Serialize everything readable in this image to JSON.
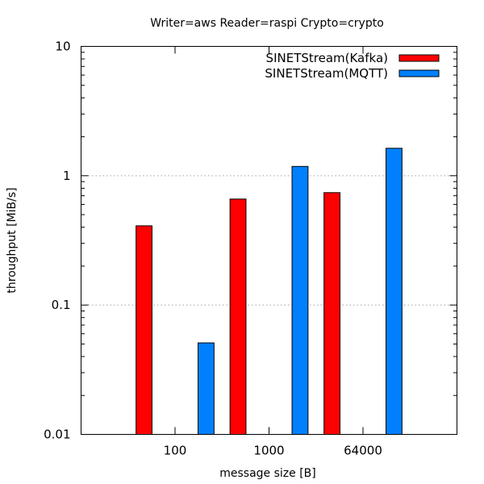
{
  "chart_data": {
    "type": "bar",
    "title": "Writer=aws Reader=raspi Crypto=crypto",
    "xlabel": "message size [B]",
    "ylabel": "throughput [MiB/s]",
    "yscale": "log",
    "ylim": [
      0.01,
      10
    ],
    "yticks": [
      {
        "value": 0.01,
        "label": "0.01"
      },
      {
        "value": 0.1,
        "label": "0.1"
      },
      {
        "value": 1,
        "label": "1"
      },
      {
        "value": 10,
        "label": "10"
      }
    ],
    "ygrid": "dotted at major ticks",
    "legend_position": "top-right",
    "categories": [
      "100",
      "1000",
      "64000"
    ],
    "series": [
      {
        "name": "SINETStream(Kafka)",
        "color": "#ff0000",
        "values": [
          0.41,
          0.66,
          0.74
        ]
      },
      {
        "name": "SINETStream(MQTT)",
        "color": "#0080ff",
        "values": [
          0.051,
          1.18,
          1.63
        ]
      }
    ]
  }
}
